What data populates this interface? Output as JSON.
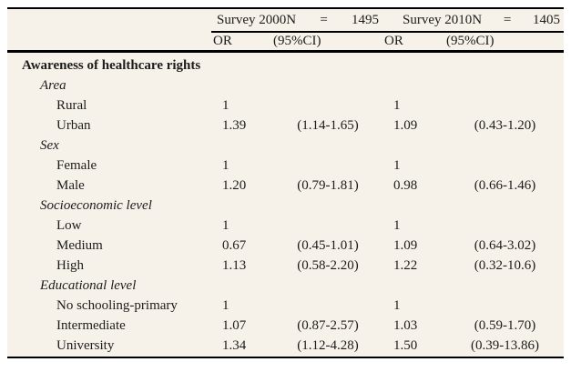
{
  "table": {
    "groups": [
      {
        "title": "Survey 2000N",
        "eq": "=",
        "n": "1495"
      },
      {
        "title": "Survey 2010N",
        "eq": "=",
        "n": "1405"
      }
    ],
    "columns": {
      "or": "OR",
      "ci": "(95%CI)"
    },
    "rows": [
      {
        "type": "section",
        "label": "Awareness of healthcare rights",
        "or1": "",
        "ci1": "",
        "or2": "",
        "ci2": ""
      },
      {
        "type": "subsection",
        "label": "Area",
        "or1": "",
        "ci1": "",
        "or2": "",
        "ci2": ""
      },
      {
        "type": "item",
        "label": "Rural",
        "or1": "1",
        "ci1": "",
        "or2": "1",
        "ci2": ""
      },
      {
        "type": "item",
        "label": "Urban",
        "or1": "1.39",
        "ci1": "(1.14-1.65)",
        "or2": "1.09",
        "ci2": "(0.43-1.20)"
      },
      {
        "type": "subsection",
        "label": "Sex",
        "or1": "",
        "ci1": "",
        "or2": "",
        "ci2": ""
      },
      {
        "type": "item",
        "label": "Female",
        "or1": "1",
        "ci1": "",
        "or2": "1",
        "ci2": ""
      },
      {
        "type": "item",
        "label": "Male",
        "or1": "1.20",
        "ci1": "(0.79-1.81)",
        "or2": "0.98",
        "ci2": "(0.66-1.46)"
      },
      {
        "type": "subsection",
        "label": "Socioeconomic level",
        "or1": "",
        "ci1": "",
        "or2": "",
        "ci2": ""
      },
      {
        "type": "item",
        "label": "Low",
        "or1": "1",
        "ci1": "",
        "or2": "1",
        "ci2": ""
      },
      {
        "type": "item",
        "label": "Medium",
        "or1": "0.67",
        "ci1": "(0.45-1.01)",
        "or2": "1.09",
        "ci2": "(0.64-3.02)"
      },
      {
        "type": "item",
        "label": "High",
        "or1": "1.13",
        "ci1": "(0.58-2.20)",
        "or2": "1.22",
        "ci2": "(0.32-10.6)"
      },
      {
        "type": "subsection",
        "label": "Educational level",
        "or1": "",
        "ci1": "",
        "or2": "",
        "ci2": ""
      },
      {
        "type": "item",
        "label": "No schooling-primary",
        "or1": "1",
        "ci1": "",
        "or2": "1",
        "ci2": ""
      },
      {
        "type": "item",
        "label": "Intermediate",
        "or1": "1.07",
        "ci1": "(0.87-2.57)",
        "or2": "1.03",
        "ci2": "(0.59-1.70)"
      },
      {
        "type": "item",
        "label": "University",
        "or1": "1.34",
        "ci1": "(1.12-4.28)",
        "or2": "1.50",
        "ci2": "(0.39-13.86)"
      }
    ]
  },
  "colors": {
    "table_background": "#f6f2e9",
    "page_background": "#ffffff",
    "text": "#1d1c1a",
    "rule": "#000000"
  }
}
